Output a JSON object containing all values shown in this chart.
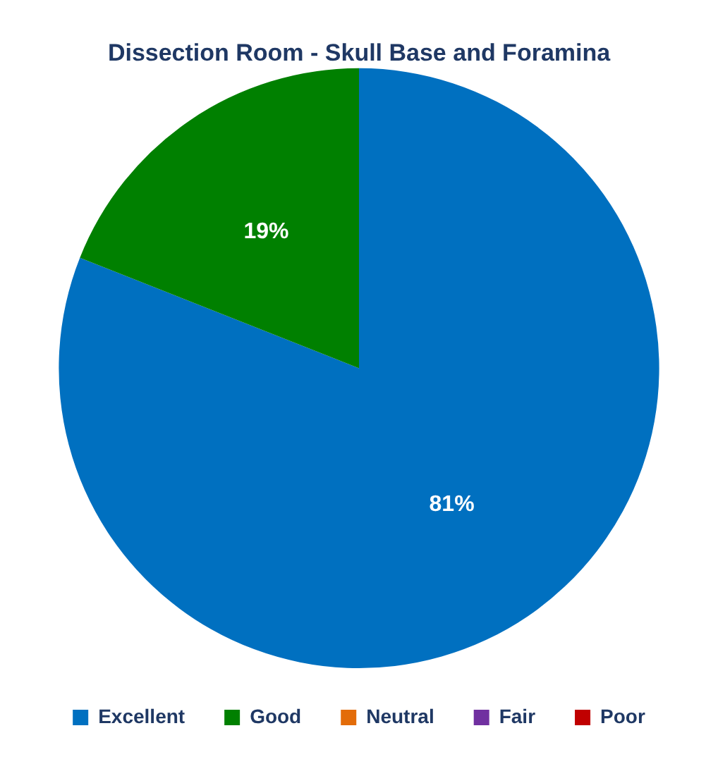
{
  "chart_data": {
    "type": "pie",
    "title": "Dissection Room - Skull Base and Foramina",
    "categories": [
      "Excellent",
      "Good",
      "Neutral",
      "Fair",
      "Poor"
    ],
    "values": [
      81,
      19,
      0,
      0,
      0
    ],
    "colors": [
      "#0070c0",
      "#008000",
      "#e36c09",
      "#7030a0",
      "#c00000"
    ],
    "value_labels": [
      "81%",
      "19%",
      null,
      null,
      null
    ],
    "legend": "bottom"
  }
}
